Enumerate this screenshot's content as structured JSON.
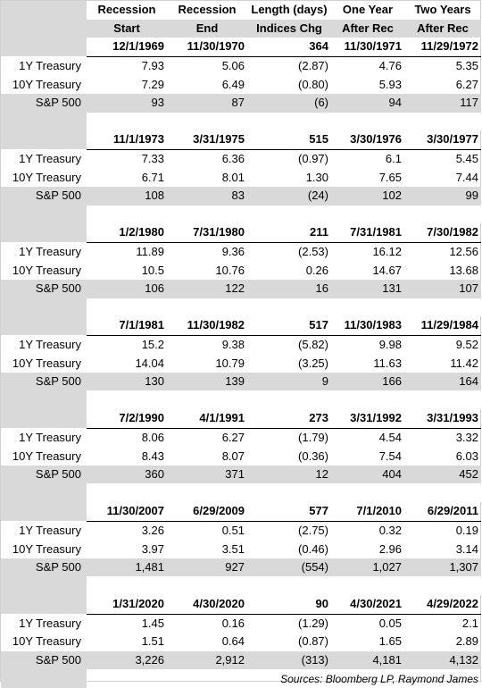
{
  "headers": {
    "row1": [
      "Recession",
      "Recession",
      "Length (days)",
      "One Year",
      "Two Years"
    ],
    "row2": [
      "Start",
      "End",
      "Indices Chg",
      "After Rec",
      "After Rec"
    ]
  },
  "row_labels": [
    "1Y Treasury",
    "10Y Treasury",
    "S&P 500"
  ],
  "recessions": [
    {
      "dates": [
        "12/1/1969",
        "11/30/1970",
        "364",
        "11/30/1971",
        "11/29/1972"
      ],
      "treasury_1y": [
        "7.93",
        "5.06",
        "(2.87)",
        "4.76",
        "5.35"
      ],
      "treasury_10y": [
        "7.29",
        "6.49",
        "(0.80)",
        "5.93",
        "6.27"
      ],
      "sp500": [
        "93",
        "87",
        "(6)",
        "94",
        "117"
      ]
    },
    {
      "dates": [
        "11/1/1973",
        "3/31/1975",
        "515",
        "3/30/1976",
        "3/30/1977"
      ],
      "treasury_1y": [
        "7.33",
        "6.36",
        "(0.97)",
        "6.1",
        "5.45"
      ],
      "treasury_10y": [
        "6.71",
        "8.01",
        "1.30",
        "7.65",
        "7.44"
      ],
      "sp500": [
        "108",
        "83",
        "(24)",
        "102",
        "99"
      ]
    },
    {
      "dates": [
        "1/2/1980",
        "7/31/1980",
        "211",
        "7/31/1981",
        "7/30/1982"
      ],
      "treasury_1y": [
        "11.89",
        "9.36",
        "(2.53)",
        "16.12",
        "12.56"
      ],
      "treasury_10y": [
        "10.5",
        "10.76",
        "0.26",
        "14.67",
        "13.68"
      ],
      "sp500": [
        "106",
        "122",
        "16",
        "131",
        "107"
      ]
    },
    {
      "dates": [
        "7/1/1981",
        "11/30/1982",
        "517",
        "11/30/1983",
        "11/29/1984"
      ],
      "treasury_1y": [
        "15.2",
        "9.38",
        "(5.82)",
        "9.98",
        "9.52"
      ],
      "treasury_10y": [
        "14.04",
        "10.79",
        "(3.25)",
        "11.63",
        "11.42"
      ],
      "sp500": [
        "130",
        "139",
        "9",
        "166",
        "164"
      ]
    },
    {
      "dates": [
        "7/2/1990",
        "4/1/1991",
        "273",
        "3/31/1992",
        "3/31/1993"
      ],
      "treasury_1y": [
        "8.06",
        "6.27",
        "(1.79)",
        "4.54",
        "3.32"
      ],
      "treasury_10y": [
        "8.43",
        "8.07",
        "(0.36)",
        "7.54",
        "6.03"
      ],
      "sp500": [
        "360",
        "371",
        "12",
        "404",
        "452"
      ]
    },
    {
      "dates": [
        "11/30/2007",
        "6/29/2009",
        "577",
        "7/1/2010",
        "6/29/2011"
      ],
      "treasury_1y": [
        "3.26",
        "0.51",
        "(2.75)",
        "0.32",
        "0.19"
      ],
      "treasury_10y": [
        "3.97",
        "3.51",
        "(0.46)",
        "2.96",
        "3.14"
      ],
      "sp500": [
        "1,481",
        "927",
        "(554)",
        "1,027",
        "1,307"
      ]
    },
    {
      "dates": [
        "1/31/2020",
        "4/30/2020",
        "90",
        "4/30/2021",
        "4/29/2022"
      ],
      "treasury_1y": [
        "1.45",
        "0.16",
        "(1.29)",
        "0.05",
        "2.1"
      ],
      "treasury_10y": [
        "1.51",
        "0.64",
        "(0.87)",
        "1.65",
        "2.89"
      ],
      "sp500": [
        "3,226",
        "2,912",
        "(313)",
        "4,181",
        "4,132"
      ]
    }
  ],
  "source": "Sources: Bloomberg LP, Raymond James"
}
